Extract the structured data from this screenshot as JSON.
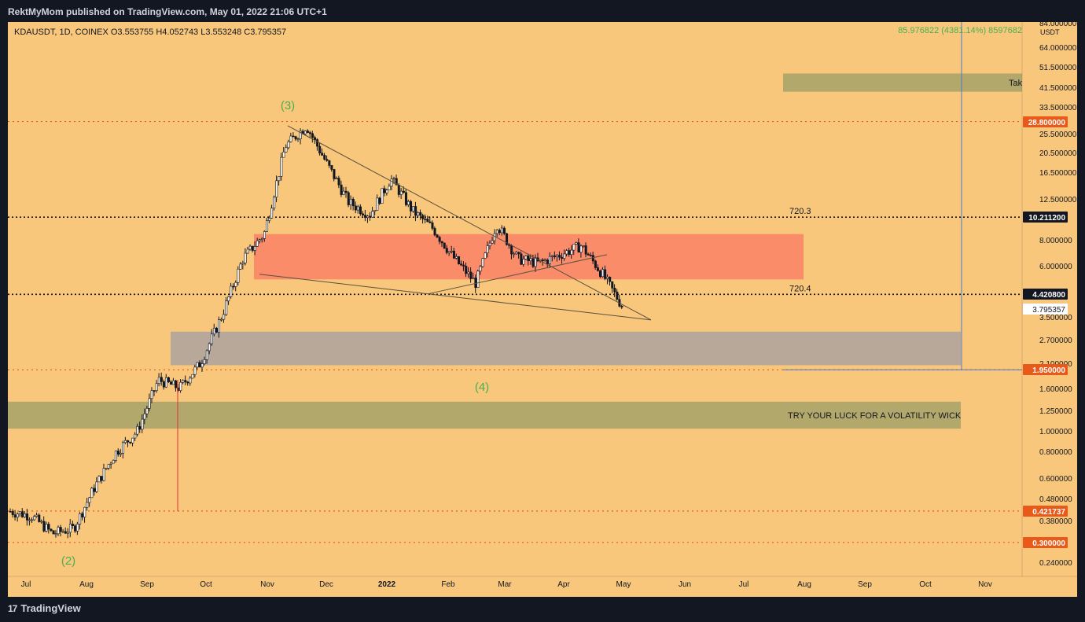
{
  "header": {
    "published_by": "RektMyMom published on TradingView.com, May 01, 2022 21:06 UTC+1"
  },
  "footer": {
    "brand": "TradingView"
  },
  "symbol_line": "KDAUSDT, 1D, COINEX  O3.553755  H4.052743  L3.553248  C3.795357",
  "measure_label": "85.976822 (4381.14%) 8597682",
  "colors": {
    "bg": "#f8c77b",
    "frame": "#131722",
    "dotted_black": "#131722",
    "dotted_orange": "#e8591a",
    "red_zone": "#fa8c6a",
    "grey_zone": "#b8a89a",
    "olive_zone": "#b3a86c",
    "green_label": "#4caf50",
    "measure_line": "#4a78c8"
  },
  "chart_data": {
    "type": "candlestick",
    "title": "KDAUSDT, 1D, COINEX",
    "scale": "log",
    "y_unit": "USDT",
    "ohlc_last": {
      "open": 3.553755,
      "high": 4.052743,
      "low": 3.553248,
      "close": 3.795357
    },
    "x_tick_labels": [
      "Jul",
      "Aug",
      "Sep",
      "Oct",
      "Nov",
      "Dec",
      "2022",
      "Feb",
      "Mar",
      "Apr",
      "May",
      "Jun",
      "Jul",
      "Aug",
      "Sep",
      "Oct",
      "Nov"
    ],
    "y_tick_labels": [
      "84.000000",
      "64.000000",
      "51.500000",
      "41.500000",
      "33.500000",
      "25.500000",
      "20.500000",
      "16.500000",
      "12.500000",
      "8.000000",
      "6.000000",
      "3.500000",
      "2.700000",
      "2.100000",
      "1.600000",
      "1.250000",
      "1.000000",
      "0.800000",
      "0.600000",
      "0.480000",
      "0.380000",
      "0.240000"
    ],
    "price_tags": [
      {
        "value": "28.800000",
        "style": "orange"
      },
      {
        "value": "10.211200",
        "style": "black"
      },
      {
        "value": "4.420800",
        "style": "black"
      },
      {
        "value": "3.795357",
        "style": "white"
      },
      {
        "value": "1.950000",
        "style": "orange"
      },
      {
        "value": "0.421737",
        "style": "orange"
      },
      {
        "value": "0.300000",
        "style": "orange"
      }
    ],
    "horizontal_levels": [
      {
        "price": 28.8,
        "style": "orange-dotted"
      },
      {
        "price": 10.2112,
        "style": "black-dotted",
        "label": "720.3"
      },
      {
        "price": 4.4208,
        "style": "black-dotted",
        "label": "720.4"
      },
      {
        "price": 1.95,
        "style": "orange-dotted"
      },
      {
        "price": 0.421737,
        "style": "orange-dotted"
      },
      {
        "price": 0.3,
        "style": "orange-dotted"
      }
    ],
    "zones": [
      {
        "name": "take-profit-zone",
        "price_top": 48.5,
        "price_bottom": 39.8,
        "label": "Tak"
      },
      {
        "name": "red-zone",
        "price_top": 8.5,
        "price_bottom": 5.2
      },
      {
        "name": "grey-zone",
        "price_top": 2.95,
        "price_bottom": 2.05
      },
      {
        "name": "volatility-zone",
        "price_top": 1.38,
        "price_bottom": 1.03,
        "label": "TRY YOUR LUCK FOR A VOLATILITY WICK"
      }
    ],
    "wave_labels": [
      "(2)",
      "(3)",
      "(4)"
    ],
    "series": [
      {
        "name": "KDAUSDT",
        "approx_close_path": [
          [
            "Jul",
            0.42
          ],
          [
            "Jul",
            0.4
          ],
          [
            "Aug",
            0.33
          ],
          [
            "Aug",
            0.35
          ],
          [
            "Aug",
            0.55
          ],
          [
            "Sep",
            0.8
          ],
          [
            "Sep",
            1.0
          ],
          [
            "Sep",
            1.75
          ],
          [
            "Oct",
            1.6
          ],
          [
            "Oct",
            2.1
          ],
          [
            "Oct",
            3.5
          ],
          [
            "Nov",
            6.5
          ],
          [
            "Nov",
            8.5
          ],
          [
            "Nov",
            22.0
          ],
          [
            "Nov",
            27.5
          ],
          [
            "Dec",
            18.0
          ],
          [
            "Dec",
            12.0
          ],
          [
            "Dec",
            10.5
          ],
          [
            "2022",
            15.5
          ],
          [
            "2022",
            11.0
          ],
          [
            "2022",
            9.0
          ],
          [
            "2022",
            6.5
          ],
          [
            "Feb",
            5.0
          ],
          [
            "Feb",
            9.5
          ],
          [
            "Feb",
            6.5
          ],
          [
            "Mar",
            6.2
          ],
          [
            "Mar",
            6.8
          ],
          [
            "Apr",
            7.5
          ],
          [
            "Apr",
            5.5
          ],
          [
            "May",
            3.8
          ]
        ]
      }
    ]
  }
}
